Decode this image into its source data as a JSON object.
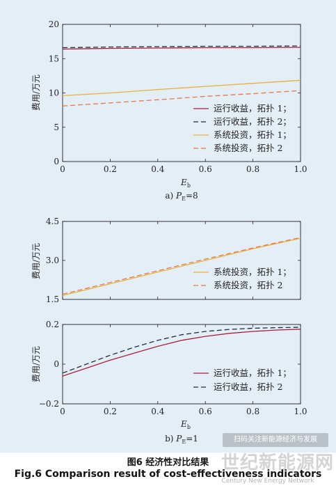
{
  "colors": {
    "operating": "#a8203c",
    "operating2": "#1f2a44",
    "invest": "#e8b040",
    "invest2": "#e8784a"
  },
  "caption": {
    "cn": "图6  经济性对比结果",
    "en": "Fig.6  Comparison result of cost-effectiveness indicators"
  },
  "watermark": {
    "box": "扫码关注新能源经济与发展",
    "text": "世纪新能源网",
    "sub": "Century New Energy Network"
  },
  "chart_data": [
    {
      "type": "line",
      "subtitle": "a) P_E=8",
      "subtitle_parts": {
        "prefix": "a) ",
        "var": "P",
        "sub": "E",
        "suffix": "=8"
      },
      "xlabel": "E",
      "xlabel_sub": "b",
      "ylabel": "费用/万元",
      "xlim": [
        0,
        1.0
      ],
      "ylim": [
        0,
        20
      ],
      "xticks": [
        "0",
        "0.2",
        "0.4",
        "0.6",
        "0.8",
        "1.0"
      ],
      "yticks": [
        "0",
        "5",
        "10",
        "15",
        "20"
      ],
      "ytick_values": [
        0,
        5,
        10,
        15,
        20
      ],
      "x": [
        0,
        0.2,
        0.4,
        0.6,
        0.8,
        1.0
      ],
      "series": [
        {
          "name": "运行收益，拓扑 1；",
          "style": "solid",
          "color": "#a8203c",
          "values": [
            16.4,
            16.5,
            16.55,
            16.6,
            16.6,
            16.65
          ]
        },
        {
          "name": "运行收益，拓扑 2；",
          "style": "dashed",
          "color": "#1f2a44",
          "values": [
            16.6,
            16.7,
            16.75,
            16.8,
            16.8,
            16.85
          ]
        },
        {
          "name": "系统投资，拓扑 1；",
          "style": "solid",
          "color": "#e8b040",
          "values": [
            9.6,
            10.0,
            10.5,
            10.95,
            11.4,
            11.85
          ]
        },
        {
          "name": "系统投资，拓扑 2",
          "style": "dashed",
          "color": "#e8784a",
          "values": [
            8.1,
            8.55,
            9.0,
            9.5,
            9.9,
            10.35
          ]
        }
      ],
      "legend": "bottom-right"
    },
    {
      "type": "line",
      "xlim": [
        0,
        1.0
      ],
      "ylim": [
        1.5,
        4.5
      ],
      "ylabel": "费用/万元",
      "yticks": [
        "1.5",
        "3.0",
        "4.5"
      ],
      "ytick_values": [
        1.5,
        3.0,
        4.5
      ],
      "x": [
        0,
        0.2,
        0.4,
        0.6,
        0.8,
        1.0
      ],
      "series": [
        {
          "name": "系统投资，拓扑 1；",
          "style": "solid",
          "color": "#e8b040",
          "values": [
            1.65,
            2.1,
            2.55,
            3.0,
            3.45,
            3.85
          ]
        },
        {
          "name": "系统投资，拓扑 2",
          "style": "dashed",
          "color": "#e8784a",
          "values": [
            1.7,
            2.15,
            2.6,
            3.05,
            3.48,
            3.88
          ]
        }
      ],
      "legend": "bottom-right"
    },
    {
      "type": "line",
      "subtitle": "b) P_E=1",
      "subtitle_parts": {
        "prefix": "b) ",
        "var": "P",
        "sub": "E",
        "suffix": "=1"
      },
      "xlabel": "E",
      "xlabel_sub": "b",
      "ylabel": "费用/万元",
      "xlim": [
        0,
        1.0
      ],
      "ylim": [
        -0.2,
        0.2
      ],
      "xticks": [
        "0",
        "0.2",
        "0.4",
        "0.6",
        "0.8",
        "1.0"
      ],
      "yticks": [
        "−0.2",
        "0",
        "0.2"
      ],
      "ytick_values": [
        -0.2,
        0,
        0.2
      ],
      "x": [
        0,
        0.1,
        0.2,
        0.3,
        0.4,
        0.5,
        0.6,
        0.7,
        0.8,
        0.9,
        1.0
      ],
      "series": [
        {
          "name": "运行收益，拓扑 1；",
          "style": "solid",
          "color": "#a8203c",
          "values": [
            -0.06,
            -0.02,
            0.02,
            0.055,
            0.09,
            0.12,
            0.14,
            0.155,
            0.165,
            0.172,
            0.176
          ]
        },
        {
          "name": "运行收益，拓扑 2",
          "style": "dashed",
          "color": "#1f2a44",
          "values": [
            -0.045,
            0.0,
            0.045,
            0.085,
            0.12,
            0.148,
            0.165,
            0.175,
            0.181,
            0.184,
            0.186
          ]
        }
      ],
      "legend": "bottom-right"
    }
  ]
}
